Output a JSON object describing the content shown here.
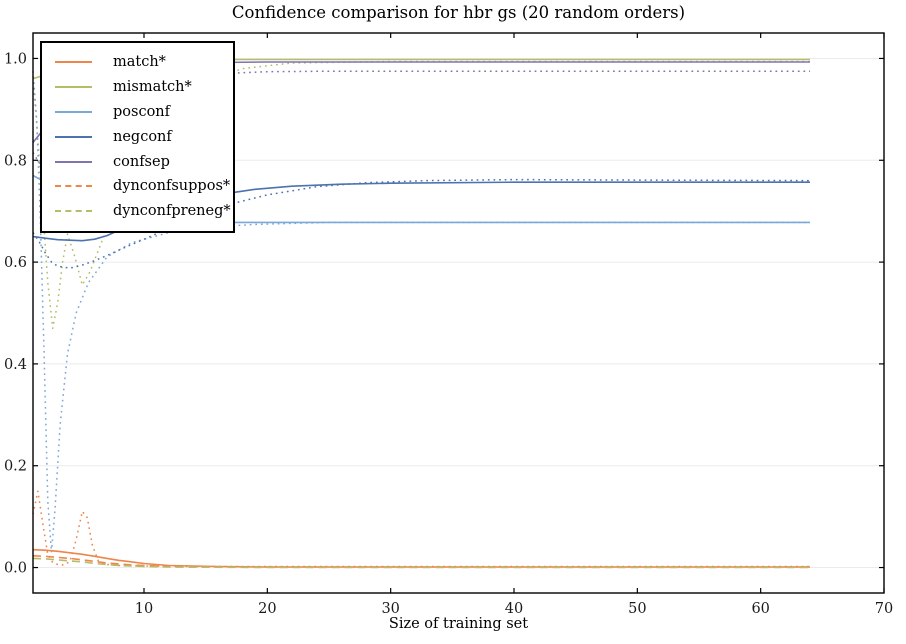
{
  "chart_data": {
    "type": "line",
    "title": "Confidence comparison for hbr gs (20 random orders)",
    "xlabel": "Size of training set",
    "ylabel": "",
    "xlim": [
      1,
      70
    ],
    "ylim": [
      -0.05,
      1.05
    ],
    "xticks": [
      10,
      20,
      30,
      40,
      50,
      60,
      70
    ],
    "yticks": [
      0.0,
      0.2,
      0.4,
      0.6,
      0.8,
      1.0
    ],
    "grid": "horizontal",
    "colors": {
      "orange": "#ee854a",
      "olive": "#b5bd68",
      "lightblue": "#7ba7d9",
      "darkblue": "#4c72b0",
      "purple": "#8172b2",
      "grid": "#ebebeb",
      "axis": "#000000",
      "tick_label": "#1a1a1a"
    },
    "legend": {
      "position": "upper left",
      "entries": [
        {
          "label": "match*",
          "color": "#ee854a",
          "style": "solid"
        },
        {
          "label": "mismatch*",
          "color": "#b5bd68",
          "style": "solid"
        },
        {
          "label": "posconf",
          "color": "#7ba7d9",
          "style": "solid"
        },
        {
          "label": "negconf",
          "color": "#4c72b0",
          "style": "solid"
        },
        {
          "label": "confsep",
          "color": "#8172b2",
          "style": "solid"
        },
        {
          "label": "dynconfsuppos*",
          "color": "#ee854a",
          "style": "dashed"
        },
        {
          "label": "dynconfpreneg*",
          "color": "#b5bd68",
          "style": "dashed"
        }
      ]
    },
    "series": [
      {
        "name": "mismatch-dotted",
        "color": "#b5bd68",
        "style": "dotted",
        "x": [
          1,
          1.4,
          1.8,
          2.2,
          2.6,
          3,
          3.4,
          3.8,
          4.4,
          5,
          5.6,
          6.5,
          7.5,
          9,
          11,
          13,
          15,
          18,
          22,
          30,
          40,
          50,
          64
        ],
        "y": [
          0.965,
          0.84,
          0.7,
          0.56,
          0.47,
          0.52,
          0.6,
          0.655,
          0.61,
          0.555,
          0.58,
          0.635,
          0.7,
          0.79,
          0.865,
          0.92,
          0.955,
          0.98,
          0.991,
          0.994,
          0.994,
          0.994,
          0.994
        ]
      },
      {
        "name": "posconf-dotted",
        "color": "#7ba7d9",
        "style": "dotted",
        "x": [
          1,
          1.3,
          1.6,
          1.9,
          2.2,
          2.5,
          2.8,
          3.2,
          3.8,
          4.5,
          5.5,
          7,
          9,
          12,
          15,
          19,
          25,
          40,
          64
        ],
        "y": [
          0.975,
          0.88,
          0.68,
          0.42,
          0.13,
          0.03,
          0.12,
          0.28,
          0.42,
          0.5,
          0.56,
          0.61,
          0.638,
          0.658,
          0.668,
          0.674,
          0.678,
          0.678,
          0.678
        ]
      },
      {
        "name": "negconf-dotted",
        "color": "#4c72b0",
        "style": "dotted",
        "x": [
          1,
          1.5,
          2,
          2.5,
          3,
          4,
          5,
          6,
          7,
          8,
          10,
          12,
          14,
          17,
          20,
          24,
          28,
          33,
          40,
          50,
          64
        ],
        "y": [
          0.658,
          0.64,
          0.618,
          0.6,
          0.592,
          0.588,
          0.594,
          0.603,
          0.613,
          0.624,
          0.645,
          0.666,
          0.688,
          0.714,
          0.732,
          0.748,
          0.756,
          0.76,
          0.762,
          0.761,
          0.76
        ]
      },
      {
        "name": "confsep-dotted",
        "color": "#8172b2",
        "style": "dotted",
        "x": [
          1,
          2,
          3,
          4,
          6,
          8,
          10,
          13,
          16,
          20,
          25,
          30,
          40,
          50,
          64
        ],
        "y": [
          0.815,
          0.775,
          0.79,
          0.82,
          0.878,
          0.92,
          0.945,
          0.962,
          0.97,
          0.974,
          0.975,
          0.975,
          0.975,
          0.975,
          0.975
        ]
      },
      {
        "name": "match-dotted",
        "color": "#ee854a",
        "style": "dotted",
        "x": [
          1,
          1.4,
          1.8,
          2.2,
          2.6,
          3,
          3.5,
          4,
          4.5,
          5,
          5.4,
          5.8,
          6.3,
          7,
          8,
          10,
          14,
          20,
          30,
          40,
          50,
          64
        ],
        "y": [
          0.105,
          0.15,
          0.085,
          0.025,
          0.01,
          0.006,
          0.005,
          0.012,
          0.055,
          0.11,
          0.098,
          0.045,
          0.012,
          0.006,
          0.004,
          0.003,
          0.002,
          0.002,
          0.002,
          0.002,
          0.002,
          0.002
        ]
      },
      {
        "name": "match",
        "color": "#ee854a",
        "style": "solid",
        "x": [
          1,
          2,
          3,
          4,
          5,
          6,
          7,
          8,
          9,
          10,
          11,
          12,
          14,
          16,
          20,
          30,
          40,
          50,
          64
        ],
        "y": [
          0.035,
          0.034,
          0.032,
          0.029,
          0.026,
          0.022,
          0.018,
          0.014,
          0.011,
          0.008,
          0.006,
          0.004,
          0.003,
          0.002,
          0.001,
          0.001,
          0.001,
          0.001,
          0.001
        ]
      },
      {
        "name": "dynconfsuppos",
        "color": "#ee854a",
        "style": "dashed",
        "x": [
          1,
          2,
          3,
          4,
          5,
          6,
          7,
          8,
          9,
          10,
          12,
          14,
          20,
          30,
          40,
          50,
          64
        ],
        "y": [
          0.023,
          0.022,
          0.02,
          0.018,
          0.015,
          0.012,
          0.009,
          0.007,
          0.005,
          0.004,
          0.002,
          0.001,
          0.001,
          0.001,
          0.001,
          0.001,
          0.001
        ]
      },
      {
        "name": "dynconfpreneg",
        "color": "#b5bd68",
        "style": "dashed",
        "x": [
          1,
          2,
          3,
          4,
          5,
          6,
          7,
          8,
          10,
          12,
          20,
          30,
          40,
          50,
          64
        ],
        "y": [
          0.018,
          0.017,
          0.015,
          0.013,
          0.011,
          0.008,
          0.006,
          0.004,
          0.002,
          0.001,
          0.0,
          0.0,
          0.0,
          0.0,
          0.0
        ]
      },
      {
        "name": "mismatch",
        "color": "#b5bd68",
        "style": "solid",
        "x": [
          1,
          2,
          3,
          4,
          6,
          8,
          10,
          14,
          20,
          30,
          40,
          50,
          64
        ],
        "y": [
          0.96,
          0.968,
          0.975,
          0.981,
          0.989,
          0.994,
          0.996,
          0.998,
          0.998,
          0.998,
          0.998,
          0.998,
          0.998
        ]
      },
      {
        "name": "posconf",
        "color": "#7ba7d9",
        "style": "solid",
        "x": [
          1,
          2,
          3,
          4,
          6,
          8,
          10,
          13,
          17,
          25,
          40,
          64
        ],
        "y": [
          0.77,
          0.757,
          0.74,
          0.722,
          0.7,
          0.688,
          0.682,
          0.679,
          0.678,
          0.678,
          0.678,
          0.678
        ]
      },
      {
        "name": "negconf",
        "color": "#4c72b0",
        "style": "solid",
        "x": [
          1,
          2,
          3,
          4,
          5,
          6,
          7,
          8,
          9,
          11,
          13,
          15,
          17,
          19,
          22,
          26,
          30,
          40,
          50,
          64
        ],
        "y": [
          0.65,
          0.647,
          0.644,
          0.643,
          0.642,
          0.645,
          0.652,
          0.663,
          0.676,
          0.697,
          0.713,
          0.726,
          0.736,
          0.743,
          0.749,
          0.753,
          0.755,
          0.757,
          0.757,
          0.757
        ]
      },
      {
        "name": "confsep",
        "color": "#8172b2",
        "style": "solid",
        "x": [
          1,
          2,
          3,
          4,
          6,
          8,
          10,
          13,
          16,
          20,
          30,
          40,
          50,
          64
        ],
        "y": [
          0.835,
          0.865,
          0.892,
          0.915,
          0.948,
          0.968,
          0.98,
          0.989,
          0.992,
          0.993,
          0.993,
          0.993,
          0.993,
          0.993
        ]
      }
    ]
  }
}
